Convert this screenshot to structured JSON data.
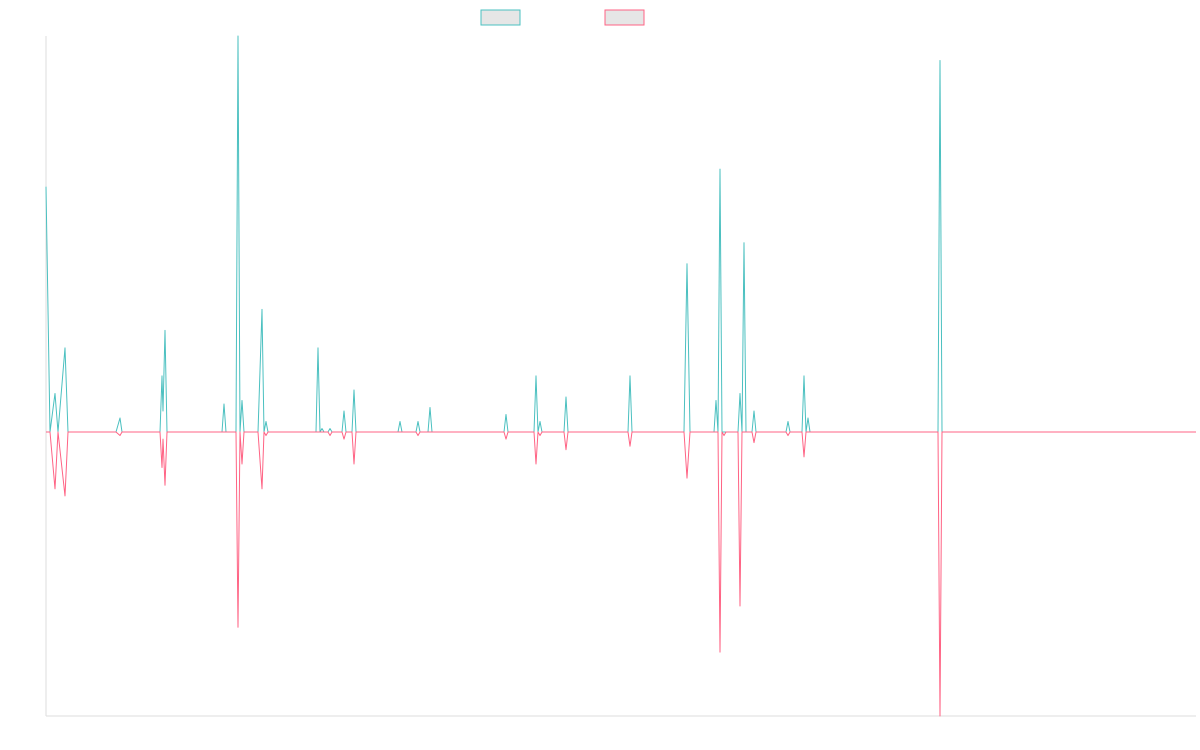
{
  "legend": {
    "items": [
      {
        "color": "#4bc0c0",
        "fill": "#e6e6e6"
      },
      {
        "color": "#ff6384",
        "fill": "#e6e6e6"
      }
    ]
  },
  "chart_data": {
    "type": "line",
    "title": "",
    "xlabel": "",
    "ylabel": "",
    "ylim": [
      -100,
      100
    ],
    "grid": false,
    "legend_position": "top",
    "series": [
      {
        "color": "#4bc0c0",
        "values": [
          [
            0,
            70
          ],
          [
            4,
            0
          ],
          [
            9,
            11
          ],
          [
            12,
            0
          ],
          [
            19,
            24
          ],
          [
            22,
            0
          ],
          [
            60,
            0
          ],
          [
            64,
            0
          ],
          [
            70,
            0
          ],
          [
            74,
            4
          ],
          [
            76,
            0
          ],
          [
            114,
            0
          ],
          [
            116,
            16
          ],
          [
            117,
            6
          ],
          [
            119,
            29
          ],
          [
            121,
            0
          ],
          [
            126,
            0
          ],
          [
            146,
            0
          ],
          [
            148,
            0
          ],
          [
            150,
            0
          ],
          [
            176,
            0
          ],
          [
            178,
            8
          ],
          [
            180,
            0
          ],
          [
            186,
            0
          ],
          [
            188,
            0
          ],
          [
            190,
            0
          ],
          [
            192,
            113
          ],
          [
            194,
            0
          ],
          [
            196,
            9
          ],
          [
            198,
            0
          ],
          [
            212,
            0
          ],
          [
            216,
            35
          ],
          [
            218,
            0
          ],
          [
            220,
            3
          ],
          [
            222,
            0
          ],
          [
            244,
            0
          ],
          [
            270,
            0
          ],
          [
            272,
            24
          ],
          [
            274,
            0
          ],
          [
            276,
            1
          ],
          [
            278,
            0
          ],
          [
            282,
            0
          ],
          [
            284,
            1
          ],
          [
            286,
            0
          ],
          [
            296,
            0
          ],
          [
            298,
            6
          ],
          [
            300,
            0
          ],
          [
            306,
            0
          ],
          [
            308,
            12
          ],
          [
            310,
            0
          ],
          [
            322,
            0
          ],
          [
            324,
            0
          ],
          [
            326,
            0
          ],
          [
            352,
            0
          ],
          [
            354,
            3
          ],
          [
            356,
            0
          ],
          [
            370,
            0
          ],
          [
            372,
            3
          ],
          [
            374,
            0
          ],
          [
            382,
            0
          ],
          [
            384,
            7
          ],
          [
            386,
            0
          ],
          [
            458,
            0
          ],
          [
            460,
            5
          ],
          [
            462,
            0
          ],
          [
            488,
            0
          ],
          [
            490,
            16
          ],
          [
            492,
            0
          ],
          [
            494,
            3
          ],
          [
            496,
            0
          ],
          [
            518,
            0
          ],
          [
            520,
            10
          ],
          [
            522,
            0
          ],
          [
            582,
            0
          ],
          [
            584,
            16
          ],
          [
            586,
            0
          ],
          [
            638,
            0
          ],
          [
            641,
            48
          ],
          [
            644,
            0
          ],
          [
            668,
            0
          ],
          [
            670,
            9
          ],
          [
            672,
            0
          ],
          [
            674,
            75
          ],
          [
            676,
            0
          ],
          [
            678,
            0
          ],
          [
            680,
            0
          ],
          [
            692,
            0
          ],
          [
            694,
            11
          ],
          [
            696,
            0
          ],
          [
            698,
            54
          ],
          [
            700,
            0
          ],
          [
            706,
            0
          ],
          [
            708,
            6
          ],
          [
            710,
            0
          ],
          [
            712,
            0
          ],
          [
            740,
            0
          ],
          [
            742,
            3
          ],
          [
            744,
            0
          ],
          [
            756,
            0
          ],
          [
            758,
            16
          ],
          [
            760,
            0
          ],
          [
            762,
            4
          ],
          [
            764,
            0
          ],
          [
            892,
            0
          ],
          [
            894,
            106
          ],
          [
            896,
            0
          ],
          [
            1150,
            0
          ]
        ]
      },
      {
        "color": "#ff6384",
        "values": [
          [
            0,
            0
          ],
          [
            4,
            0
          ],
          [
            9,
            -16
          ],
          [
            12,
            0
          ],
          [
            19,
            -18
          ],
          [
            22,
            0
          ],
          [
            60,
            0
          ],
          [
            64,
            0
          ],
          [
            70,
            0
          ],
          [
            74,
            -1
          ],
          [
            76,
            0
          ],
          [
            114,
            0
          ],
          [
            116,
            -10
          ],
          [
            117,
            -2
          ],
          [
            119,
            -15
          ],
          [
            121,
            0
          ],
          [
            126,
            0
          ],
          [
            146,
            0
          ],
          [
            148,
            0
          ],
          [
            150,
            0
          ],
          [
            176,
            0
          ],
          [
            178,
            0
          ],
          [
            180,
            0
          ],
          [
            186,
            0
          ],
          [
            188,
            0
          ],
          [
            190,
            0
          ],
          [
            192,
            -55
          ],
          [
            194,
            0
          ],
          [
            196,
            -9
          ],
          [
            198,
            0
          ],
          [
            212,
            0
          ],
          [
            216,
            -16
          ],
          [
            218,
            0
          ],
          [
            220,
            -1
          ],
          [
            222,
            0
          ],
          [
            244,
            0
          ],
          [
            270,
            0
          ],
          [
            272,
            0
          ],
          [
            274,
            0
          ],
          [
            276,
            0
          ],
          [
            278,
            0
          ],
          [
            282,
            0
          ],
          [
            284,
            -1
          ],
          [
            286,
            0
          ],
          [
            296,
            0
          ],
          [
            298,
            -2
          ],
          [
            300,
            0
          ],
          [
            306,
            0
          ],
          [
            308,
            -9
          ],
          [
            310,
            0
          ],
          [
            322,
            0
          ],
          [
            324,
            0
          ],
          [
            326,
            0
          ],
          [
            352,
            0
          ],
          [
            354,
            0
          ],
          [
            356,
            0
          ],
          [
            370,
            0
          ],
          [
            372,
            -1
          ],
          [
            374,
            0
          ],
          [
            382,
            0
          ],
          [
            384,
            0
          ],
          [
            386,
            0
          ],
          [
            458,
            0
          ],
          [
            460,
            -2
          ],
          [
            462,
            0
          ],
          [
            488,
            0
          ],
          [
            490,
            -9
          ],
          [
            492,
            0
          ],
          [
            494,
            -1
          ],
          [
            496,
            0
          ],
          [
            518,
            0
          ],
          [
            520,
            -5
          ],
          [
            522,
            0
          ],
          [
            582,
            0
          ],
          [
            584,
            -4
          ],
          [
            586,
            0
          ],
          [
            638,
            0
          ],
          [
            641,
            -13
          ],
          [
            644,
            0
          ],
          [
            668,
            0
          ],
          [
            670,
            0
          ],
          [
            672,
            0
          ],
          [
            674,
            -62
          ],
          [
            676,
            0
          ],
          [
            678,
            -1
          ],
          [
            680,
            0
          ],
          [
            692,
            0
          ],
          [
            694,
            -49
          ],
          [
            696,
            0
          ],
          [
            698,
            0
          ],
          [
            700,
            0
          ],
          [
            706,
            0
          ],
          [
            708,
            -3
          ],
          [
            710,
            0
          ],
          [
            712,
            0
          ],
          [
            740,
            0
          ],
          [
            742,
            -1
          ],
          [
            744,
            0
          ],
          [
            756,
            0
          ],
          [
            758,
            -7
          ],
          [
            760,
            0
          ],
          [
            762,
            0
          ],
          [
            764,
            0
          ],
          [
            892,
            0
          ],
          [
            894,
            -80
          ],
          [
            896,
            0
          ],
          [
            1150,
            0
          ]
        ]
      }
    ]
  }
}
